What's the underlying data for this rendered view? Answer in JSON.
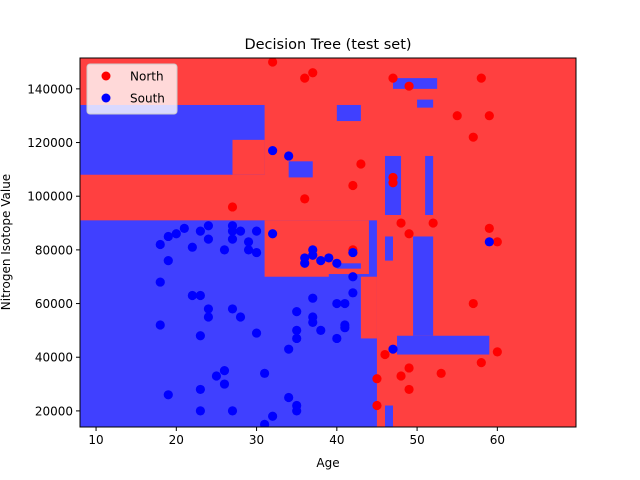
{
  "chart_data": {
    "type": "scatter",
    "title": "Decision Tree (test set)",
    "xlabel": "Age",
    "ylabel": "Nitrogen Isotope Value",
    "xlim": [
      8,
      69.8
    ],
    "ylim": [
      14000,
      151500
    ],
    "x_ticks": [
      10,
      20,
      30,
      40,
      50,
      60
    ],
    "y_ticks": [
      20000,
      40000,
      60000,
      80000,
      100000,
      120000,
      140000
    ],
    "x_tick_labels": [
      "10",
      "20",
      "30",
      "40",
      "50",
      "60"
    ],
    "y_tick_labels": [
      "20000",
      "40000",
      "60000",
      "80000",
      "100000",
      "120000",
      "140000"
    ],
    "legend_position": "top-left",
    "grid": false,
    "colors": {
      "north_region": "#ff4040",
      "south_region": "#4040ff",
      "north_point": "#ff0000",
      "south_point": "#0000ff"
    },
    "regions": [
      {
        "cls": "South",
        "x": [
          8,
          45
        ],
        "y": [
          14000,
          91000
        ]
      },
      {
        "cls": "South",
        "x": [
          8,
          31
        ],
        "y": [
          108000,
          134000
        ]
      },
      {
        "cls": "North",
        "x": [
          27,
          31
        ],
        "y": [
          108000,
          121000
        ]
      },
      {
        "cls": "South",
        "x": [
          34,
          37
        ],
        "y": [
          107000,
          113000
        ]
      },
      {
        "cls": "North",
        "x": [
          31,
          44
        ],
        "y": [
          70000,
          91000
        ]
      },
      {
        "cls": "North",
        "x": [
          37,
          44
        ],
        "y": [
          76000,
          80000
        ]
      },
      {
        "cls": "South",
        "x": [
          40,
          43
        ],
        "y": [
          73000,
          75000
        ]
      },
      {
        "cls": "South",
        "x": [
          39,
          44
        ],
        "y": [
          68000,
          71000
        ]
      },
      {
        "cls": "North",
        "x": [
          43,
          45
        ],
        "y": [
          47000,
          70000
        ]
      },
      {
        "cls": "North",
        "x": [
          45,
          70
        ],
        "y": [
          14000,
          90000
        ]
      },
      {
        "cls": "South",
        "x": [
          46,
          47
        ],
        "y": [
          14000,
          22000
        ]
      },
      {
        "cls": "South",
        "x": [
          47.5,
          59
        ],
        "y": [
          41000,
          48000
        ]
      },
      {
        "cls": "South",
        "x": [
          49.5,
          52
        ],
        "y": [
          48000,
          85000
        ]
      },
      {
        "cls": "South",
        "x": [
          46,
          47
        ],
        "y": [
          76000,
          85000
        ]
      },
      {
        "cls": "South",
        "x": [
          46,
          48
        ],
        "y": [
          93000,
          115000
        ]
      },
      {
        "cls": "South",
        "x": [
          51,
          52
        ],
        "y": [
          93000,
          115000
        ]
      },
      {
        "cls": "South",
        "x": [
          47,
          52.5
        ],
        "y": [
          140000,
          144000
        ]
      },
      {
        "cls": "South",
        "x": [
          50,
          52
        ],
        "y": [
          133000,
          136000
        ]
      },
      {
        "cls": "South",
        "x": [
          40,
          43
        ],
        "y": [
          128000,
          134000
        ]
      }
    ],
    "series": [
      {
        "name": "North",
        "points": [
          [
            32,
            150000
          ],
          [
            36,
            144000
          ],
          [
            37,
            146000
          ],
          [
            47,
            144000
          ],
          [
            49,
            141000
          ],
          [
            58,
            144000
          ],
          [
            55,
            130000
          ],
          [
            59,
            130000
          ],
          [
            57,
            122000
          ],
          [
            43,
            112000
          ],
          [
            42,
            104000
          ],
          [
            36,
            99000
          ],
          [
            27,
            96000
          ],
          [
            47,
            107000
          ],
          [
            47,
            105000
          ],
          [
            48,
            90000
          ],
          [
            52,
            90000
          ],
          [
            49,
            86000
          ],
          [
            59,
            88000
          ],
          [
            60,
            83000
          ],
          [
            42,
            80000
          ],
          [
            57,
            60000
          ],
          [
            46,
            41000
          ],
          [
            60,
            42000
          ],
          [
            58,
            38000
          ],
          [
            45,
            32000
          ],
          [
            48,
            33000
          ],
          [
            49,
            36000
          ],
          [
            53,
            34000
          ],
          [
            49,
            28000
          ],
          [
            45,
            22000
          ]
        ]
      },
      {
        "name": "South",
        "points": [
          [
            32,
            117000
          ],
          [
            34,
            115000
          ],
          [
            18,
            82000
          ],
          [
            19,
            85000
          ],
          [
            20,
            86000
          ],
          [
            21,
            88000
          ],
          [
            22,
            81000
          ],
          [
            23,
            87000
          ],
          [
            24,
            89000
          ],
          [
            24,
            84000
          ],
          [
            26,
            80000
          ],
          [
            27,
            89000
          ],
          [
            27,
            87000
          ],
          [
            27,
            84000
          ],
          [
            28,
            87000
          ],
          [
            29,
            83000
          ],
          [
            29,
            80000
          ],
          [
            30,
            87000
          ],
          [
            30,
            79000
          ],
          [
            32,
            86000
          ],
          [
            19,
            76000
          ],
          [
            18,
            68000
          ],
          [
            22,
            63000
          ],
          [
            23,
            63000
          ],
          [
            24,
            58000
          ],
          [
            24,
            55000
          ],
          [
            27,
            58000
          ],
          [
            28,
            55000
          ],
          [
            18,
            52000
          ],
          [
            23,
            48000
          ],
          [
            30,
            49000
          ],
          [
            35,
            57000
          ],
          [
            35,
            50000
          ],
          [
            35,
            47000
          ],
          [
            34,
            43000
          ],
          [
            38,
            50000
          ],
          [
            36,
            77000
          ],
          [
            36,
            75000
          ],
          [
            37,
            80000
          ],
          [
            37,
            78000
          ],
          [
            38,
            76000
          ],
          [
            39,
            77000
          ],
          [
            40,
            75000
          ],
          [
            42,
            79000
          ],
          [
            42,
            70000
          ],
          [
            37,
            62000
          ],
          [
            40,
            60000
          ],
          [
            41,
            60000
          ],
          [
            42,
            64000
          ],
          [
            37,
            55000
          ],
          [
            37,
            53000
          ],
          [
            41,
            52000
          ],
          [
            41,
            51000
          ],
          [
            40,
            47000
          ],
          [
            47,
            43000
          ],
          [
            59,
            83000
          ],
          [
            26,
            35000
          ],
          [
            26,
            30000
          ],
          [
            25,
            33000
          ],
          [
            31,
            34000
          ],
          [
            19,
            26000
          ],
          [
            23,
            28000
          ],
          [
            34,
            25000
          ],
          [
            35,
            22000
          ],
          [
            35,
            20000
          ],
          [
            23,
            20000
          ],
          [
            27,
            20000
          ],
          [
            32,
            18000
          ],
          [
            31,
            15000
          ]
        ]
      }
    ]
  }
}
